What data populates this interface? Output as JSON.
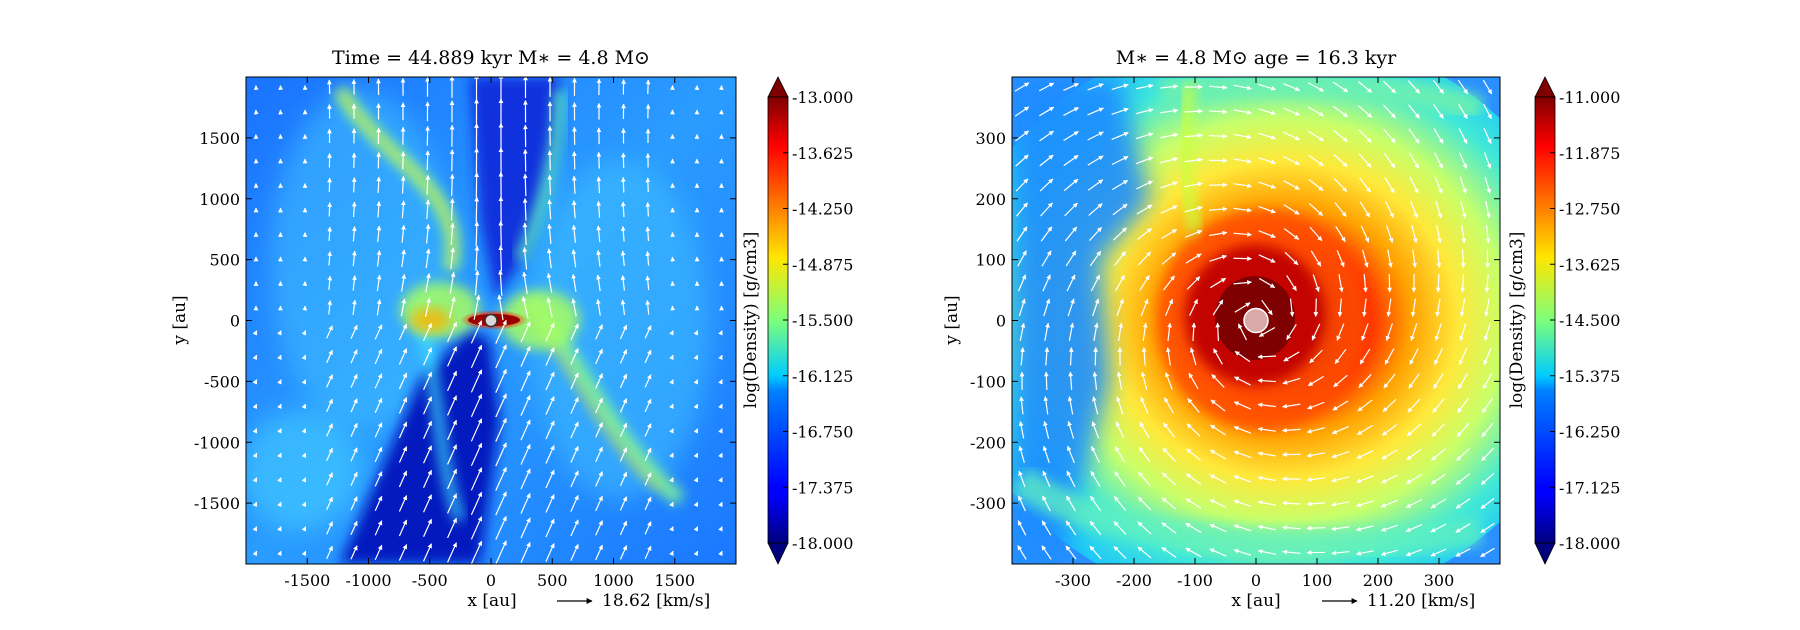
{
  "chart_data": [
    {
      "type": "heatmap",
      "title": "Time = 44.889 kyr    M∗ = 4.8 M⊙",
      "xlabel": "x [au]",
      "ylabel": "y [au]",
      "xlim": [
        -2000,
        2000
      ],
      "ylim": [
        -2000,
        2000
      ],
      "xticks": [
        -1500,
        -1000,
        -500,
        0,
        500,
        1000,
        1500
      ],
      "yticks": [
        -1500,
        -1000,
        -500,
        0,
        500,
        1000,
        1500
      ],
      "xtick_labels": [
        "-1500",
        "-1000",
        "-500",
        "0",
        "500",
        "1000",
        "1500"
      ],
      "ytick_labels": [
        "-1500",
        "-1000",
        "-500",
        "0",
        "500",
        "1000",
        "1500"
      ],
      "velocity_key": "18.62 [km/s]",
      "star": {
        "x": 0,
        "y": 0
      },
      "colorbar": {
        "label": "log(Density) [g/cm3]",
        "range": [
          -18.0,
          -13.0
        ],
        "ticks": [
          -18.0,
          -17.375,
          -16.75,
          -16.125,
          -15.5,
          -14.875,
          -14.25,
          -13.625,
          -13.0
        ],
        "tick_labels": [
          "-18.000",
          "-17.375",
          "-16.750",
          "-16.125",
          "-15.500",
          "-14.875",
          "-14.250",
          "-13.625",
          "-13.000"
        ],
        "colormap": "jet",
        "extend": "both"
      }
    },
    {
      "type": "heatmap",
      "title": "M∗ = 4.8 M⊙          age = 16.3 kyr",
      "xlabel": "x [au]",
      "ylabel": "y [au]",
      "xlim": [
        -400,
        400
      ],
      "ylim": [
        -400,
        400
      ],
      "xticks": [
        -300,
        -200,
        -100,
        0,
        100,
        200,
        300
      ],
      "yticks": [
        -300,
        -200,
        -100,
        0,
        100,
        200,
        300
      ],
      "xtick_labels": [
        "-300",
        "-200",
        "-100",
        "0",
        "100",
        "200",
        "300"
      ],
      "ytick_labels": [
        "-300",
        "-200",
        "-100",
        "0",
        "100",
        "200",
        "300"
      ],
      "velocity_key": "11.20 [km/s]",
      "star": {
        "x": 0,
        "y": 0
      },
      "colorbar": {
        "label": "log(Density) [g/cm3]",
        "range": [
          -18.0,
          -11.0
        ],
        "ticks": [
          -18.0,
          -17.125,
          -16.25,
          -15.375,
          -14.5,
          -13.625,
          -12.75,
          -11.875,
          -11.0
        ],
        "tick_labels": [
          "-18.000",
          "-17.125",
          "-16.250",
          "-15.375",
          "-14.500",
          "-13.625",
          "-12.750",
          "-11.875",
          "-11.000"
        ],
        "colormap": "jet",
        "extend": "both"
      }
    }
  ]
}
